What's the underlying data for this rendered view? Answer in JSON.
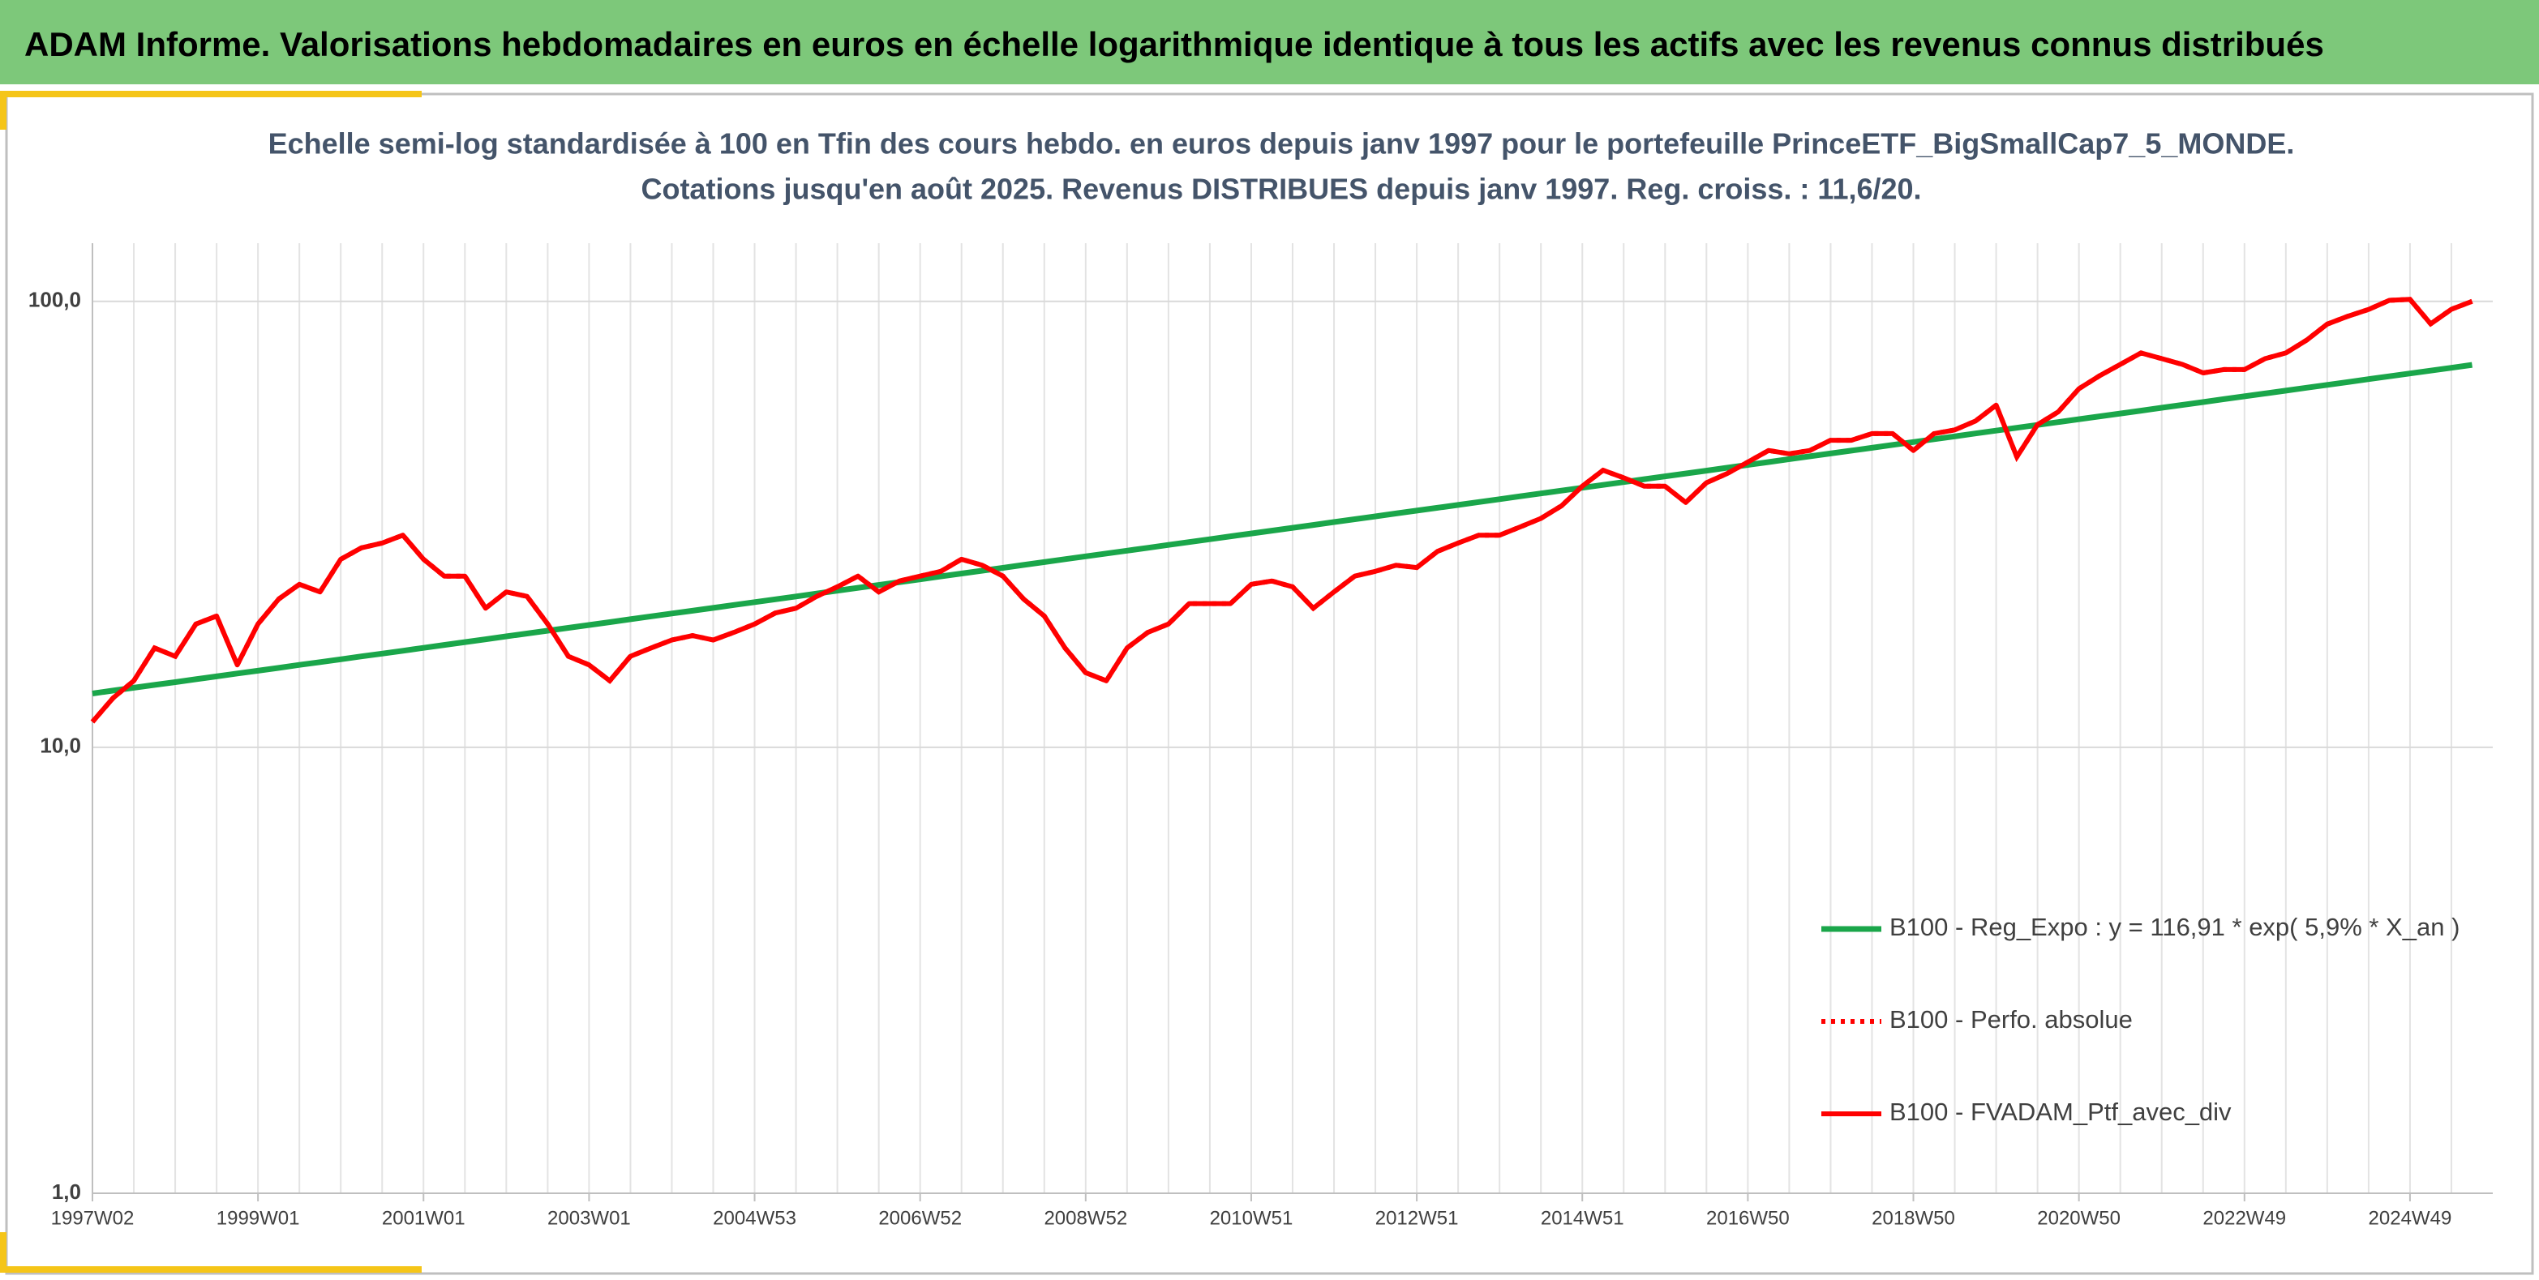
{
  "header": {
    "title": "ADAM Informe. Valorisations hebdomadaires en euros en échelle logarithmique identique à tous les actifs avec les revenus connus distribués"
  },
  "chart_data": {
    "type": "line",
    "title": "Echelle semi-log standardisée à 100 en Tfin des cours hebdo. en euros depuis janv 1997 pour le portefeuille PrinceETF_BigSmallCap7_5_MONDE.",
    "subtitle": "Cotations jusqu'en août 2025. Revenus DISTRIBUES depuis janv 1997. Reg. croiss. : 11,6/20.",
    "log_scale": true,
    "grid": true,
    "legend": "bottom-right",
    "ylim": [
      1,
      135
    ],
    "yticks": [
      {
        "value": 1,
        "label": "1,0"
      },
      {
        "value": 10,
        "label": "10,0"
      },
      {
        "value": 100,
        "label": "100,0"
      }
    ],
    "categories": [
      "1997W02",
      null,
      null,
      null,
      null,
      null,
      null,
      null,
      "1999W01",
      null,
      null,
      null,
      null,
      null,
      null,
      null,
      "2001W01",
      null,
      null,
      null,
      null,
      null,
      null,
      null,
      "2003W01",
      null,
      null,
      null,
      null,
      null,
      null,
      null,
      "2004W53",
      null,
      null,
      null,
      null,
      null,
      null,
      null,
      "2006W52",
      null,
      null,
      null,
      null,
      null,
      null,
      null,
      "2008W52",
      null,
      null,
      null,
      null,
      null,
      null,
      null,
      "2010W51",
      null,
      null,
      null,
      null,
      null,
      null,
      null,
      "2012W51",
      null,
      null,
      null,
      null,
      null,
      null,
      null,
      "2014W51",
      null,
      null,
      null,
      null,
      null,
      null,
      null,
      "2016W50",
      null,
      null,
      null,
      null,
      null,
      null,
      null,
      "2018W50",
      null,
      null,
      null,
      null,
      null,
      null,
      null,
      "2020W50",
      null,
      null,
      null,
      null,
      null,
      null,
      null,
      "2022W49",
      null,
      null,
      null,
      null,
      null,
      null,
      null,
      "2024W49",
      null,
      null,
      null
    ],
    "series": [
      {
        "name": "B100 - Reg_Expo : y = 116,91 * exp( 5,9% *  X_an )",
        "color": "#1aa64a",
        "style": "solid",
        "values": [
          13.2,
          13.4,
          13.6,
          13.8,
          14.0,
          14.21,
          14.42,
          14.64,
          14.85,
          15.07,
          15.3,
          15.52,
          15.75,
          15.99,
          16.22,
          16.46,
          16.71,
          16.96,
          17.21,
          17.47,
          17.73,
          17.99,
          18.26,
          18.53,
          18.8,
          19.08,
          19.37,
          19.66,
          19.95,
          20.24,
          20.54,
          20.85,
          21.16,
          21.47,
          21.79,
          22.12,
          22.45,
          22.78,
          23.12,
          23.46,
          23.81,
          24.17,
          24.53,
          24.89,
          25.26,
          25.64,
          26.02,
          26.41,
          26.8,
          27.2,
          27.6,
          28.01,
          28.43,
          28.85,
          29.28,
          29.72,
          30.16,
          30.61,
          31.06,
          31.52,
          31.99,
          32.47,
          32.95,
          33.44,
          33.94,
          34.44,
          34.95,
          35.47,
          36.0,
          36.54,
          37.08,
          37.63,
          38.19,
          38.76,
          39.33,
          39.92,
          40.51,
          41.11,
          41.72,
          42.34,
          42.97,
          43.61,
          44.26,
          44.92,
          45.58,
          46.26,
          46.95,
          47.65,
          48.35,
          49.07,
          49.8,
          50.54,
          51.29,
          52.05,
          52.83,
          53.61,
          54.41,
          55.22,
          56.04,
          56.87,
          57.72,
          58.58,
          59.45,
          60.33,
          61.23,
          62.14,
          63.06,
          64.0,
          64.95,
          65.92,
          66.9,
          67.89,
          68.9,
          69.92,
          70.96,
          72.02
        ]
      },
      {
        "name": "B100 - Perfo. absolue",
        "color": "#ff0000",
        "style": "dotted",
        "values": [
          11.4,
          12.9,
          14.1,
          16.7,
          16.0,
          18.9,
          19.7,
          15.3,
          18.9,
          21.5,
          23.2,
          22.3,
          26.4,
          28.0,
          28.7,
          29.9,
          26.4,
          24.2,
          24.2,
          20.5,
          22.3,
          21.8,
          18.9,
          16.0,
          15.3,
          14.1,
          16.0,
          16.7,
          17.4,
          17.8,
          17.4,
          18.1,
          18.9,
          20.0,
          20.5,
          21.8,
          22.9,
          24.2,
          22.3,
          23.6,
          24.2,
          24.8,
          26.4,
          25.6,
          24.2,
          21.5,
          19.7,
          16.7,
          14.7,
          14.1,
          16.7,
          18.1,
          18.9,
          21.0,
          21.0,
          21.0,
          23.2,
          23.6,
          22.9,
          20.5,
          22.3,
          24.2,
          24.8,
          25.6,
          25.3,
          27.5,
          28.7,
          29.9,
          29.9,
          31.2,
          32.6,
          34.8,
          38.5,
          41.8,
          40.2,
          38.5,
          38.5,
          35.4,
          39.2,
          41.1,
          43.6,
          46.3,
          45.5,
          46.3,
          48.8,
          48.8,
          50.5,
          50.5,
          46.3,
          50.5,
          51.5,
          53.9,
          58.5,
          44.8,
          52.9,
          56.5,
          63.7,
          68.1,
          72.2,
          76.6,
          74.4,
          72.2,
          69.1,
          70.3,
          70.3,
          74.4,
          76.6,
          81.8,
          88.9,
          92.6,
          95.9,
          100.5,
          101,
          89,
          96,
          100
        ]
      },
      {
        "name": "B100 - FVADAM_Ptf_avec_div",
        "color": "#ff0000",
        "style": "solid",
        "values": [
          11.4,
          12.9,
          14.1,
          16.7,
          16.0,
          18.9,
          19.7,
          15.3,
          18.9,
          21.5,
          23.2,
          22.3,
          26.4,
          28.0,
          28.7,
          29.9,
          26.4,
          24.2,
          24.2,
          20.5,
          22.3,
          21.8,
          18.9,
          16.0,
          15.3,
          14.1,
          16.0,
          16.7,
          17.4,
          17.8,
          17.4,
          18.1,
          18.9,
          20.0,
          20.5,
          21.8,
          22.9,
          24.2,
          22.3,
          23.6,
          24.2,
          24.8,
          26.4,
          25.6,
          24.2,
          21.5,
          19.7,
          16.7,
          14.7,
          14.1,
          16.7,
          18.1,
          18.9,
          21.0,
          21.0,
          21.0,
          23.2,
          23.6,
          22.9,
          20.5,
          22.3,
          24.2,
          24.8,
          25.6,
          25.3,
          27.5,
          28.7,
          29.9,
          29.9,
          31.2,
          32.6,
          34.8,
          38.5,
          41.8,
          40.2,
          38.5,
          38.5,
          35.4,
          39.2,
          41.1,
          43.6,
          46.3,
          45.5,
          46.3,
          48.8,
          48.8,
          50.5,
          50.5,
          46.3,
          50.5,
          51.5,
          53.9,
          58.5,
          44.8,
          52.9,
          56.5,
          63.7,
          68.1,
          72.2,
          76.6,
          74.4,
          72.2,
          69.1,
          70.3,
          70.3,
          74.4,
          76.6,
          81.8,
          88.9,
          92.6,
          95.9,
          100.5,
          101,
          89,
          96,
          100
        ]
      }
    ]
  }
}
